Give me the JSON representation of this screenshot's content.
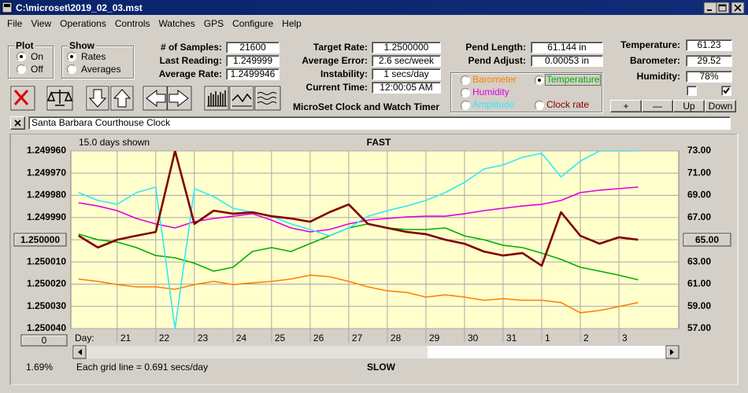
{
  "window": {
    "title": "C:\\microset\\2019_02_03.mst"
  },
  "menu": [
    "File",
    "View",
    "Operations",
    "Controls",
    "Watches",
    "GPS",
    "Configure",
    "Help"
  ],
  "plot_box": {
    "title": "Plot",
    "options": [
      {
        "label": "On",
        "checked": true
      },
      {
        "label": "Off",
        "checked": false
      }
    ]
  },
  "show_box": {
    "title": "Show",
    "options": [
      {
        "label": "Rates",
        "checked": true
      },
      {
        "label": "Averages",
        "checked": false
      }
    ]
  },
  "readouts": [
    [
      {
        "label": "# of Samples:",
        "value": "21600"
      },
      {
        "label": "Last Reading:",
        "value": "1.249999"
      },
      {
        "label": "Average Rate:",
        "value": "1.2499946"
      }
    ],
    [
      {
        "label": "Target Rate:",
        "value": "1.2500000"
      },
      {
        "label": "Average Error:",
        "value": "2.6 sec/week"
      },
      {
        "label": "Instability:",
        "value": "1 secs/day"
      },
      {
        "label": "Current Time:",
        "value": "12:00:05 AM"
      }
    ],
    [
      {
        "label": "Pend Length:",
        "value": "61.144 in"
      },
      {
        "label": "Pend Adjust:",
        "value": "0.00053 in"
      }
    ],
    [
      {
        "label": "Temperature:",
        "value": "61.23"
      },
      {
        "label": "Barometer:",
        "value": "29.52"
      },
      {
        "label": "Humidity:",
        "value": "78%"
      }
    ]
  ],
  "checkboxes": [
    false,
    true
  ],
  "buttons": [
    "+",
    "—",
    "Up",
    "Down"
  ],
  "app_title": "MicroSet Clock and Watch Timer",
  "clock_name": "Santa Barbara Courthouse Clock",
  "chart_data": {
    "type": "line",
    "span_label": "15.0 days shown",
    "top_label": "FAST",
    "bottom_label": "SLOW",
    "x_label": "Day:",
    "zero_button": "0",
    "status_left": "1.69%",
    "footnote": "Each grid line = 0.691 secs/day",
    "grid": true,
    "x": [
      20,
      20.5,
      21,
      21.5,
      22,
      22.5,
      23,
      23.5,
      24,
      24.5,
      25,
      25.5,
      26,
      26.5,
      27,
      27.5,
      28,
      28.5,
      29,
      29.5,
      30,
      30.5,
      31,
      31.5,
      32,
      32.5,
      33,
      33.5,
      34,
      34.5
    ],
    "xlim": [
      19.8,
      35.55
    ],
    "xticks": [
      21,
      22,
      23,
      24,
      25,
      26,
      27,
      28,
      29,
      30,
      31,
      {
        "value": 32,
        "label": "1"
      },
      {
        "value": 33,
        "label": "2"
      },
      {
        "value": 34,
        "label": "3"
      }
    ],
    "ylim": [
      1.25004,
      1.24996
    ],
    "yticks": [
      {
        "value": 1.24996,
        "label": "1.249960"
      },
      {
        "value": 1.24997,
        "label": "1.249970"
      },
      {
        "value": 1.24998,
        "label": "1.249980"
      },
      {
        "value": 1.24999,
        "label": "1.249990"
      },
      {
        "value": 1.25,
        "label": "1.250000"
      },
      {
        "value": 1.25001,
        "label": "1.250010"
      },
      {
        "value": 1.25002,
        "label": "1.250020"
      },
      {
        "value": 1.25003,
        "label": "1.250030"
      },
      {
        "value": 1.25004,
        "label": "1.250040"
      }
    ],
    "y2lim": [
      57,
      73
    ],
    "y2ticks": [
      {
        "value": 73,
        "label": "73.00"
      },
      {
        "value": 71,
        "label": "71.00"
      },
      {
        "value": 69,
        "label": "69.00"
      },
      {
        "value": 67,
        "label": "67.00"
      },
      {
        "value": 65,
        "label": "65.00"
      },
      {
        "value": 63,
        "label": "63.00"
      },
      {
        "value": 61,
        "label": "61.00"
      },
      {
        "value": 59,
        "label": "59.00"
      },
      {
        "value": 57,
        "label": "57.00"
      }
    ],
    "series": [
      {
        "name": "Barometer",
        "color": "#ff8000",
        "axis": "y2",
        "selected": false,
        "values": [
          61.46,
          61.25,
          60.96,
          60.75,
          60.75,
          60.54,
          60.96,
          61.25,
          60.96,
          61.11,
          61.25,
          61.46,
          61.81,
          61.67,
          61.25,
          60.75,
          60.4,
          60.26,
          59.83,
          60.04,
          59.83,
          59.55,
          59.69,
          59.55,
          59.55,
          59.34,
          58.42,
          58.63,
          58.98,
          59.34
        ]
      },
      {
        "name": "Temperature",
        "color": "#00b000",
        "axis": "y2",
        "selected": true,
        "values": [
          65.5,
          65.0,
          64.79,
          64.29,
          63.58,
          63.37,
          62.88,
          62.17,
          62.52,
          63.94,
          64.29,
          63.94,
          64.65,
          65.35,
          66.06,
          66.42,
          66.06,
          65.92,
          65.92,
          66.06,
          65.35,
          65.0,
          64.5,
          64.29,
          63.8,
          63.23,
          62.52,
          62.17,
          61.81,
          61.39
        ]
      },
      {
        "name": "Humidity",
        "color": "#e000e0",
        "axis": "y2",
        "selected": false,
        "values": [
          68.33,
          68.04,
          67.62,
          66.91,
          66.42,
          66.06,
          66.63,
          66.91,
          67.12,
          67.34,
          66.77,
          66.06,
          65.71,
          65.92,
          66.42,
          66.77,
          66.91,
          67.05,
          67.12,
          67.12,
          67.34,
          67.62,
          67.83,
          68.04,
          68.19,
          68.54,
          69.25,
          69.46,
          69.6,
          69.74
        ]
      },
      {
        "name": "Amplitude",
        "color": "#33e6ff",
        "axis": "y2",
        "selected": false,
        "values": [
          69.25,
          68.54,
          68.19,
          69.25,
          69.74,
          57.0,
          69.6,
          68.89,
          67.83,
          67.48,
          67.12,
          66.42,
          65.92,
          65.35,
          66.06,
          67.12,
          67.62,
          68.04,
          68.54,
          69.25,
          70.17,
          71.37,
          71.73,
          72.43,
          72.79,
          70.66,
          72.08,
          73.0,
          73.0,
          73.0
        ]
      },
      {
        "name": "Clock rate",
        "color": "#800000",
        "axis": "y",
        "selected": false,
        "values": [
          1.2499982,
          1.2500035,
          1.25,
          1.2499982,
          1.2499965,
          1.24996,
          1.2499929,
          1.2499869,
          1.2499883,
          1.2499876,
          1.2499894,
          1.2499904,
          1.2499919,
          1.2499876,
          1.2499841,
          1.2499929,
          1.2499947,
          1.2499965,
          1.2499975,
          1.25,
          1.2500018,
          1.2500053,
          1.2500071,
          1.250006,
          1.2500117,
          1.2499876,
          1.2499982,
          1.2500018,
          1.2499989,
          1.25
        ]
      }
    ]
  }
}
